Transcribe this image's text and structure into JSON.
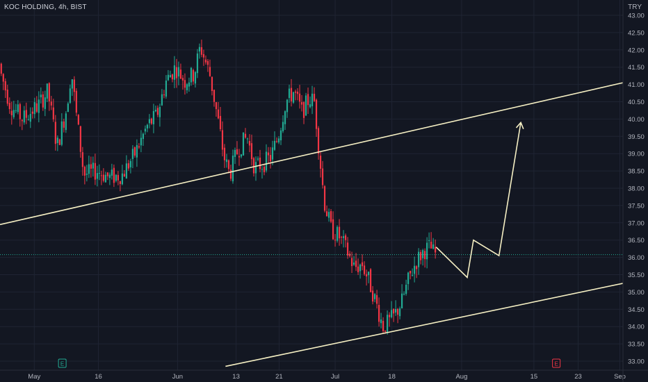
{
  "chart_data": {
    "type": "candlestick",
    "title": "KOC HOLDING, 4h, BIST",
    "currency": "TRY",
    "ylim": [
      32.85,
      43.15
    ],
    "y_ticks": [
      "33.00",
      "33.50",
      "34.00",
      "34.50",
      "35.00",
      "35.50",
      "36.00",
      "36.50",
      "37.00",
      "37.50",
      "38.00",
      "38.50",
      "39.00",
      "39.50",
      "40.00",
      "40.50",
      "41.00",
      "41.50",
      "42.00",
      "42.50",
      "43.00"
    ],
    "x_ticks": [
      {
        "label": "May",
        "t": 0.055
      },
      {
        "label": "16",
        "t": 0.158
      },
      {
        "label": "Jun",
        "t": 0.285
      },
      {
        "label": "13",
        "t": 0.379
      },
      {
        "label": "21",
        "t": 0.448
      },
      {
        "label": "Jul",
        "t": 0.538
      },
      {
        "label": "18",
        "t": 0.629
      },
      {
        "label": "Aug",
        "t": 0.741
      },
      {
        "label": "15",
        "t": 0.857
      },
      {
        "label": "23",
        "t": 0.928
      },
      {
        "label": "Sep",
        "t": 0.995
      }
    ],
    "last_price": 36.08,
    "events": [
      {
        "label": "E",
        "t": 0.1,
        "type": "past"
      },
      {
        "label": "E",
        "t": 0.893,
        "type": "future"
      }
    ],
    "trendlines": [
      {
        "name": "upper-channel",
        "points": [
          [
            0.0,
            36.95
          ],
          [
            1.0,
            41.05
          ]
        ]
      },
      {
        "name": "lower-channel",
        "points": [
          [
            0.362,
            32.85
          ],
          [
            1.0,
            35.25
          ]
        ]
      }
    ],
    "projection": [
      [
        0.7,
        36.3
      ],
      [
        0.75,
        35.42
      ],
      [
        0.76,
        36.5
      ],
      [
        0.801,
        36.05
      ],
      [
        0.836,
        39.9
      ]
    ],
    "anchors": [
      [
        0.0,
        41.6
      ],
      [
        0.02,
        40.4
      ],
      [
        0.04,
        40.0
      ],
      [
        0.065,
        40.4
      ],
      [
        0.08,
        40.8
      ],
      [
        0.095,
        39.2
      ],
      [
        0.11,
        40.3
      ],
      [
        0.118,
        41.4
      ],
      [
        0.126,
        40.1
      ],
      [
        0.138,
        38.4
      ],
      [
        0.16,
        38.5
      ],
      [
        0.18,
        38.3
      ],
      [
        0.2,
        38.4
      ],
      [
        0.22,
        39.0
      ],
      [
        0.24,
        39.8
      ],
      [
        0.255,
        40.1
      ],
      [
        0.27,
        41.1
      ],
      [
        0.285,
        41.5
      ],
      [
        0.3,
        41.1
      ],
      [
        0.315,
        41.3
      ],
      [
        0.325,
        42.1
      ],
      [
        0.34,
        41.3
      ],
      [
        0.352,
        40.1
      ],
      [
        0.363,
        38.9
      ],
      [
        0.372,
        38.4
      ],
      [
        0.385,
        39.1
      ],
      [
        0.4,
        39.5
      ],
      [
        0.412,
        38.6
      ],
      [
        0.425,
        38.7
      ],
      [
        0.438,
        38.9
      ],
      [
        0.45,
        39.5
      ],
      [
        0.462,
        40.5
      ],
      [
        0.475,
        40.8
      ],
      [
        0.488,
        40.2
      ],
      [
        0.5,
        40.6
      ],
      [
        0.508,
        40.5
      ],
      [
        0.516,
        39.0
      ],
      [
        0.524,
        37.6
      ],
      [
        0.535,
        36.8
      ],
      [
        0.548,
        36.6
      ],
      [
        0.56,
        36.2
      ],
      [
        0.572,
        35.7
      ],
      [
        0.585,
        35.8
      ],
      [
        0.596,
        35.3
      ],
      [
        0.605,
        34.8
      ],
      [
        0.618,
        34.0
      ],
      [
        0.626,
        34.1
      ],
      [
        0.636,
        34.3
      ],
      [
        0.648,
        34.7
      ],
      [
        0.66,
        35.4
      ],
      [
        0.672,
        35.9
      ],
      [
        0.684,
        36.2
      ],
      [
        0.694,
        36.3
      ],
      [
        0.7,
        36.1
      ]
    ]
  }
}
